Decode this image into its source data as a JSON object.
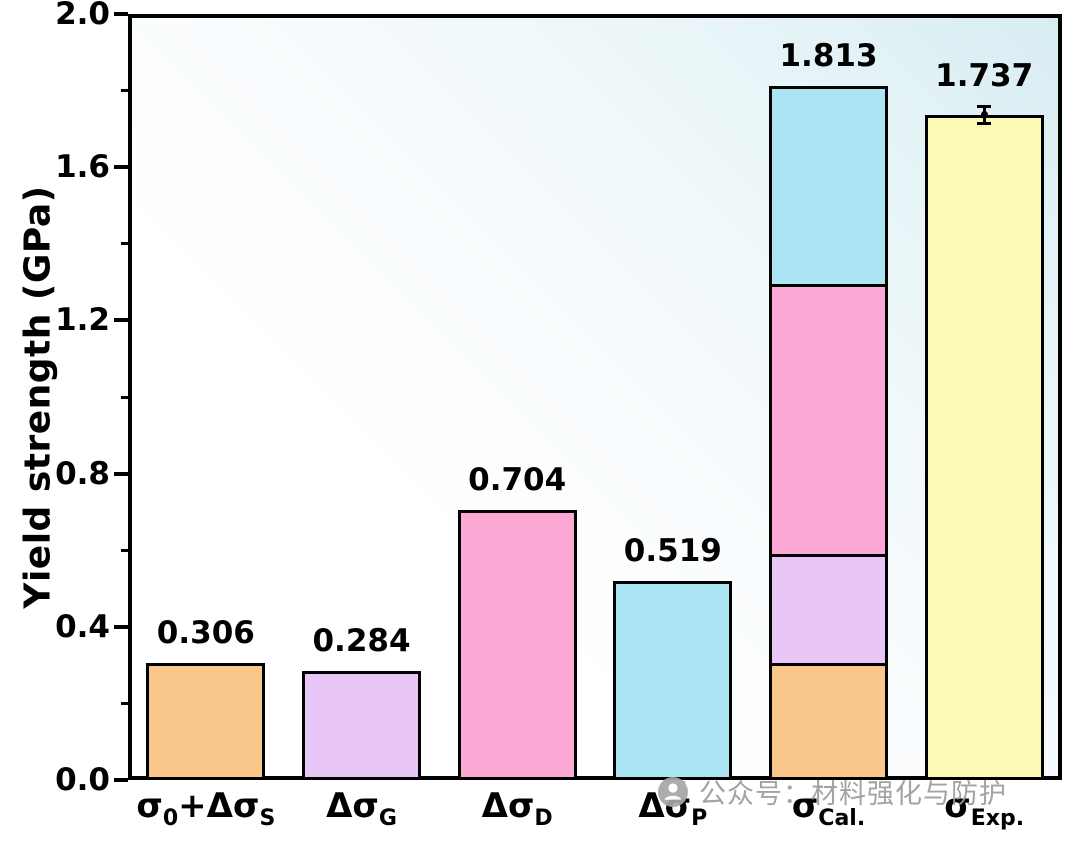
{
  "chart_data": {
    "type": "bar",
    "title": "",
    "ylabel": "Yield strength (GPa)",
    "xlabel": "",
    "ylim": [
      0,
      2.0
    ],
    "ytick_step": 0.4,
    "minor_tick_step": 0.2,
    "yticks": [
      "0.0",
      "0.4",
      "0.8",
      "1.2",
      "1.6",
      "2.0"
    ],
    "grid": false,
    "legend": "none",
    "bar_border_color": "#000000",
    "categories": [
      {
        "parts": [
          {
            "t": "σ"
          },
          {
            "t": "0",
            "sub": true
          },
          {
            "t": "+Δσ"
          },
          {
            "t": "S",
            "sub": true
          }
        ]
      },
      {
        "parts": [
          {
            "t": "Δσ"
          },
          {
            "t": "G",
            "sub": true
          }
        ]
      },
      {
        "parts": [
          {
            "t": "Δσ"
          },
          {
            "t": "D",
            "sub": true
          }
        ]
      },
      {
        "parts": [
          {
            "t": "Δσ"
          },
          {
            "t": "P",
            "sub": true
          }
        ]
      },
      {
        "parts": [
          {
            "t": "σ"
          },
          {
            "t": "Cal.",
            "sub": true
          }
        ]
      },
      {
        "parts": [
          {
            "t": "σ"
          },
          {
            "t": "Exp.",
            "sub": true
          }
        ]
      }
    ],
    "bars": [
      {
        "name": "sigma0-plus-dsigmaS",
        "value": 0.306,
        "label_value": "0.306",
        "color": "#FAC78B"
      },
      {
        "name": "dsigmaG",
        "value": 0.284,
        "label_value": "0.284",
        "color": "#E8C7F8"
      },
      {
        "name": "dsigmaD",
        "value": 0.704,
        "label_value": "0.704",
        "color": "#FBA8D4"
      },
      {
        "name": "dsigmaP",
        "value": 0.519,
        "label_value": "0.519",
        "color": "#ABE4F2"
      },
      {
        "name": "sigmaCal",
        "value": 1.813,
        "label_value": "1.813",
        "segments": [
          {
            "value": 0.306,
            "color": "#FAC78B"
          },
          {
            "value": 0.284,
            "color": "#E8C7F8"
          },
          {
            "value": 0.704,
            "color": "#FBA8D4"
          },
          {
            "value": 0.519,
            "color": "#ABE4F2"
          }
        ]
      },
      {
        "name": "sigmaExp",
        "value": 1.737,
        "label_value": "1.737",
        "color": "#FAFAB6",
        "error": 0.022
      }
    ]
  },
  "watermark": {
    "text": "公众号：材料强化与防护"
  }
}
